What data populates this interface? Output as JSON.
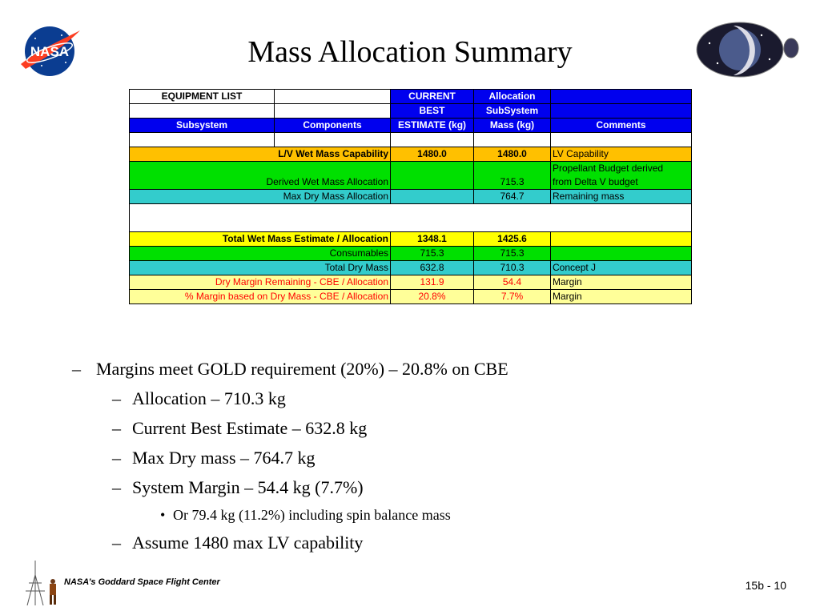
{
  "title": "Mass Allocation Summary",
  "table": {
    "header": {
      "row1": [
        "EQUIPMENT LIST",
        "",
        "CURRENT",
        "Allocation",
        ""
      ],
      "row2": [
        "",
        "",
        "BEST",
        "SubSystem",
        ""
      ],
      "row3": [
        "Subsystem",
        "Components",
        "ESTIMATE (kg)",
        "Mass (kg)",
        "Comments"
      ]
    },
    "rows": {
      "lv": {
        "label": "L/V Wet Mass Capability",
        "cbe": "1480.0",
        "alloc": "1480.0",
        "comment": "LV Capability"
      },
      "derived": {
        "label": "Derived Wet Mass Allocation",
        "cbe": "",
        "alloc": "715.3",
        "comment_line1": "Propellant Budget derived",
        "comment_line2": "from Delta V budget"
      },
      "maxdry": {
        "label": "Max Dry Mass Allocation",
        "cbe": "",
        "alloc": "764.7",
        "comment": "Remaining mass"
      },
      "totalwet": {
        "label": "Total Wet Mass Estimate / Allocation",
        "cbe": "1348.1",
        "alloc": "1425.6",
        "comment": ""
      },
      "consumables": {
        "label": "Consumables",
        "cbe": "715.3",
        "alloc": "715.3",
        "comment": ""
      },
      "totaldry": {
        "label": "Total Dry Mass",
        "cbe": "632.8",
        "alloc": "710.3",
        "comment": "Concept J"
      },
      "drymargin": {
        "label": "Dry Margin Remaining -  CBE / Allocation",
        "cbe": "131.9",
        "alloc": "54.4",
        "comment": "Margin"
      },
      "pctmargin": {
        "label": "% Margin based on Dry Mass - CBE / Allocation",
        "cbe": "20.8%",
        "alloc": "7.7%",
        "comment": "Margin"
      }
    }
  },
  "bullets": {
    "b1": "Margins meet GOLD requirement (20%) – 20.8% on CBE",
    "b2a": "Allocation – 710.3 kg",
    "b2b": "Current Best Estimate – 632.8 kg",
    "b2c": "Max Dry mass – 764.7 kg",
    "b2d": "System Margin – 54.4 kg (7.7%)",
    "b3": "Or 79.4 kg (11.2%) including spin balance mass",
    "b2e": "Assume 1480 max LV capability",
    "dash": "–",
    "dot": "•"
  },
  "footer": {
    "org": "NASA’s Goddard Space Flight Center",
    "page": "15b - 10"
  },
  "logos": {
    "nasa_text": "NASA"
  },
  "colors": {
    "header_blue": "#0000ee",
    "orange": "#ffc000",
    "green": "#00e000",
    "teal": "#33cccc",
    "yellow": "#ffff00",
    "pale_yellow": "#ffff99",
    "margin_red": "#ff0000"
  }
}
